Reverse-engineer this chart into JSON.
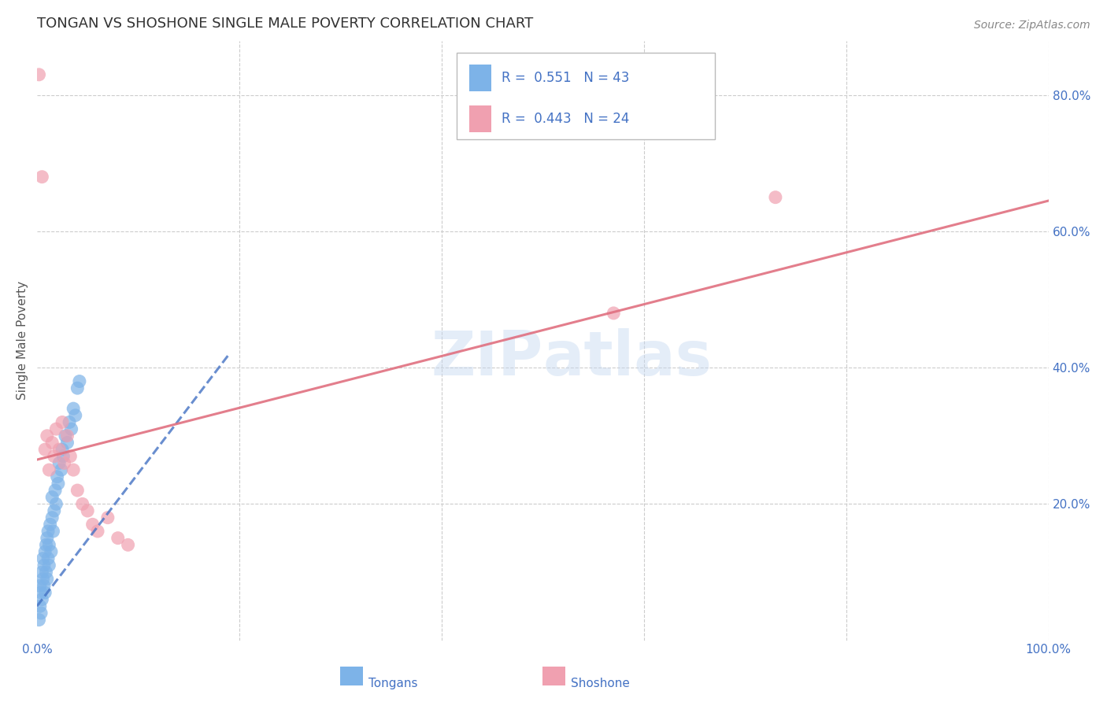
{
  "title": "TONGAN VS SHOSHONE SINGLE MALE POVERTY CORRELATION CHART",
  "source": "Source: ZipAtlas.com",
  "ylabel": "Single Male Poverty",
  "xlim": [
    0,
    1.0
  ],
  "ylim": [
    0,
    0.88
  ],
  "R_tongan": 0.551,
  "N_tongan": 43,
  "R_shoshone": 0.443,
  "N_shoshone": 24,
  "tongan_color": "#7db3e8",
  "shoshone_color": "#f0a0b0",
  "tongan_line_color": "#4472c4",
  "shoshone_line_color": "#e07080",
  "watermark_zip": "ZIP",
  "watermark_atlas": "atlas",
  "background_color": "#ffffff",
  "grid_color": "#cccccc",
  "title_color": "#333333",
  "axis_label_color": "#4472c4",
  "tongan_x": [
    0.002,
    0.003,
    0.003,
    0.004,
    0.004,
    0.005,
    0.005,
    0.006,
    0.006,
    0.007,
    0.007,
    0.008,
    0.008,
    0.009,
    0.009,
    0.01,
    0.01,
    0.011,
    0.011,
    0.012,
    0.012,
    0.013,
    0.014,
    0.015,
    0.015,
    0.016,
    0.017,
    0.018,
    0.019,
    0.02,
    0.021,
    0.022,
    0.024,
    0.025,
    0.026,
    0.028,
    0.03,
    0.032,
    0.034,
    0.036,
    0.038,
    0.04,
    0.042
  ],
  "tongan_y": [
    0.03,
    0.05,
    0.08,
    0.04,
    0.07,
    0.06,
    0.1,
    0.09,
    0.12,
    0.08,
    0.11,
    0.07,
    0.13,
    0.1,
    0.14,
    0.09,
    0.15,
    0.12,
    0.16,
    0.11,
    0.14,
    0.17,
    0.13,
    0.18,
    0.21,
    0.16,
    0.19,
    0.22,
    0.2,
    0.24,
    0.23,
    0.26,
    0.25,
    0.28,
    0.27,
    0.3,
    0.29,
    0.32,
    0.31,
    0.34,
    0.33,
    0.37,
    0.38
  ],
  "shoshone_x": [
    0.002,
    0.005,
    0.008,
    0.01,
    0.012,
    0.015,
    0.017,
    0.019,
    0.022,
    0.025,
    0.027,
    0.03,
    0.033,
    0.036,
    0.04,
    0.045,
    0.05,
    0.055,
    0.06,
    0.07,
    0.08,
    0.09,
    0.57,
    0.73
  ],
  "shoshone_y": [
    0.83,
    0.68,
    0.28,
    0.3,
    0.25,
    0.29,
    0.27,
    0.31,
    0.28,
    0.32,
    0.26,
    0.3,
    0.27,
    0.25,
    0.22,
    0.2,
    0.19,
    0.17,
    0.16,
    0.18,
    0.15,
    0.14,
    0.48,
    0.65
  ],
  "tongan_trendline_x": [
    0.0,
    0.19
  ],
  "tongan_trendline_y": [
    0.05,
    0.42
  ],
  "shoshone_trendline_x": [
    0.0,
    1.0
  ],
  "shoshone_trendline_y": [
    0.265,
    0.645
  ]
}
